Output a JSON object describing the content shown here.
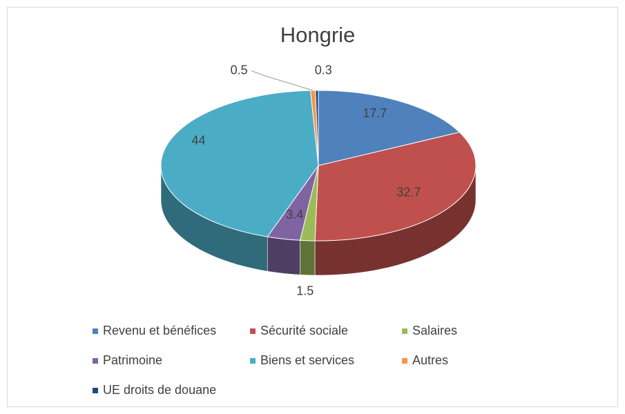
{
  "chart_data": {
    "type": "pie3d",
    "title": "Hongrie",
    "categories": [
      "Revenu et bénéfices",
      "Sécurité sociale",
      "Salaires",
      "Patrimoine",
      "Biens et services",
      "Autres",
      "UE droits de douane"
    ],
    "values": [
      17.7,
      32.7,
      1.5,
      3.4,
      44,
      0.5,
      0.3
    ],
    "colors": [
      "#4f81bd",
      "#c0504d",
      "#9bbb59",
      "#8064a2",
      "#4bacc6",
      "#f79646",
      "#1f497d"
    ],
    "legend": "bottom"
  }
}
